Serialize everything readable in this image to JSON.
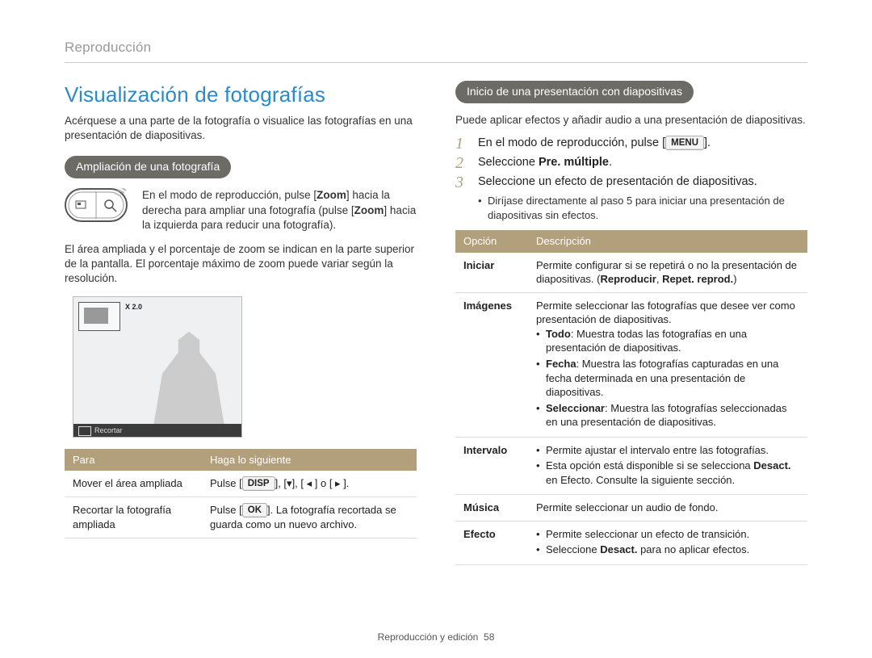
{
  "breadcrumb": "Reproducción",
  "colors": {
    "accent_blue": "#2a8acb",
    "pill_bg": "#6d6b66",
    "table_header_bg": "#b2a07d",
    "step_number": "#b2a07d",
    "text": "#222222",
    "muted": "#999999",
    "rule": "#cccccc"
  },
  "left": {
    "title": "Visualización de fotografías",
    "intro": "Acérquese a una parte de la fotografía o visualice las fotografías en una presentación de diapositivas.",
    "section_pill": "Ampliación de una fotografía",
    "zoom_instr_prefix": "En el modo de reproducción, pulse [",
    "zoom_key1": "Zoom",
    "zoom_instr_mid1": "] hacia la derecha para ampliar una fotografía (pulse [",
    "zoom_key2": "Zoom",
    "zoom_instr_suffix": "] hacia la izquierda para reducir una fotografía).",
    "area_text": "El área ampliada y el porcentaje de zoom se indican en la parte superior de la pantalla. El porcentaje máximo de zoom puede variar según la resolución.",
    "screenshot": {
      "zoom_label": "X 2.0",
      "bottom_bar": "Recortar"
    },
    "table": {
      "headers": [
        "Para",
        "Haga lo siguiente"
      ],
      "rows": [
        {
          "para": "Mover el área ampliada",
          "do_prefix": "Pulse [",
          "key": "DISP",
          "do_suffix": "], [▾], [ ◂ ] o [ ▸ ].",
          "note": ""
        },
        {
          "para": "Recortar la fotografía ampliada",
          "do_prefix": "Pulse [",
          "key": "OK",
          "do_suffix": "]. La fotografía recortada se guarda como un nuevo archivo.",
          "note": ""
        }
      ]
    }
  },
  "right": {
    "section_pill": "Inicio de una presentación con diapositivas",
    "intro": "Puede aplicar efectos y añadir audio a una presentación de diapositivas.",
    "steps": [
      {
        "n": "1",
        "text_prefix": "En el modo de reproducción, pulse [",
        "key": "MENU",
        "text_suffix": "]."
      },
      {
        "n": "2",
        "text_prefix": "Seleccione ",
        "bold": "Pre. múltiple",
        "text_suffix": "."
      },
      {
        "n": "3",
        "text_prefix": "Seleccione un efecto de presentación de diapositivas.",
        "key": "",
        "text_suffix": ""
      }
    ],
    "sub_bullet": "Diríjase directamente al paso 5 para iniciar una presentación de diapositivas sin efectos.",
    "table": {
      "headers": [
        "Opción",
        "Descripción"
      ],
      "rows": [
        {
          "opt": "Iniciar",
          "html": "Permite configurar si se repetirá o no la presentación de diapositivas. (<b>Reproducir</b>, <b>Repet. reprod.</b>)"
        },
        {
          "opt": "Imágenes",
          "html": "Permite seleccionar las fotografías que desee ver como presentación de diapositivas.<ul class='cell'><li><b>Todo</b>: Muestra todas las fotografías en una presentación de diapositivas.</li><li><b>Fecha</b>: Muestra las fotografías capturadas en una fecha determinada en una presentación de diapositivas.</li><li><b>Seleccionar</b>: Muestra las fotografías seleccionadas en una presentación de diapositivas.</li></ul>"
        },
        {
          "opt": "Intervalo",
          "html": "<ul class='cell'><li>Permite ajustar el intervalo entre las fotografías.</li><li>Esta opción está disponible si se selecciona <b>Desact.</b> en Efecto. Consulte la siguiente sección.</li></ul>"
        },
        {
          "opt": "Música",
          "html": "Permite seleccionar un audio de fondo."
        },
        {
          "opt": "Efecto",
          "html": "<ul class='cell'><li>Permite seleccionar un efecto de transición.</li><li>Seleccione <b>Desact.</b> para no aplicar efectos.</li></ul>"
        }
      ]
    }
  },
  "footer": {
    "label": "Reproducción y edición",
    "page": "58"
  }
}
